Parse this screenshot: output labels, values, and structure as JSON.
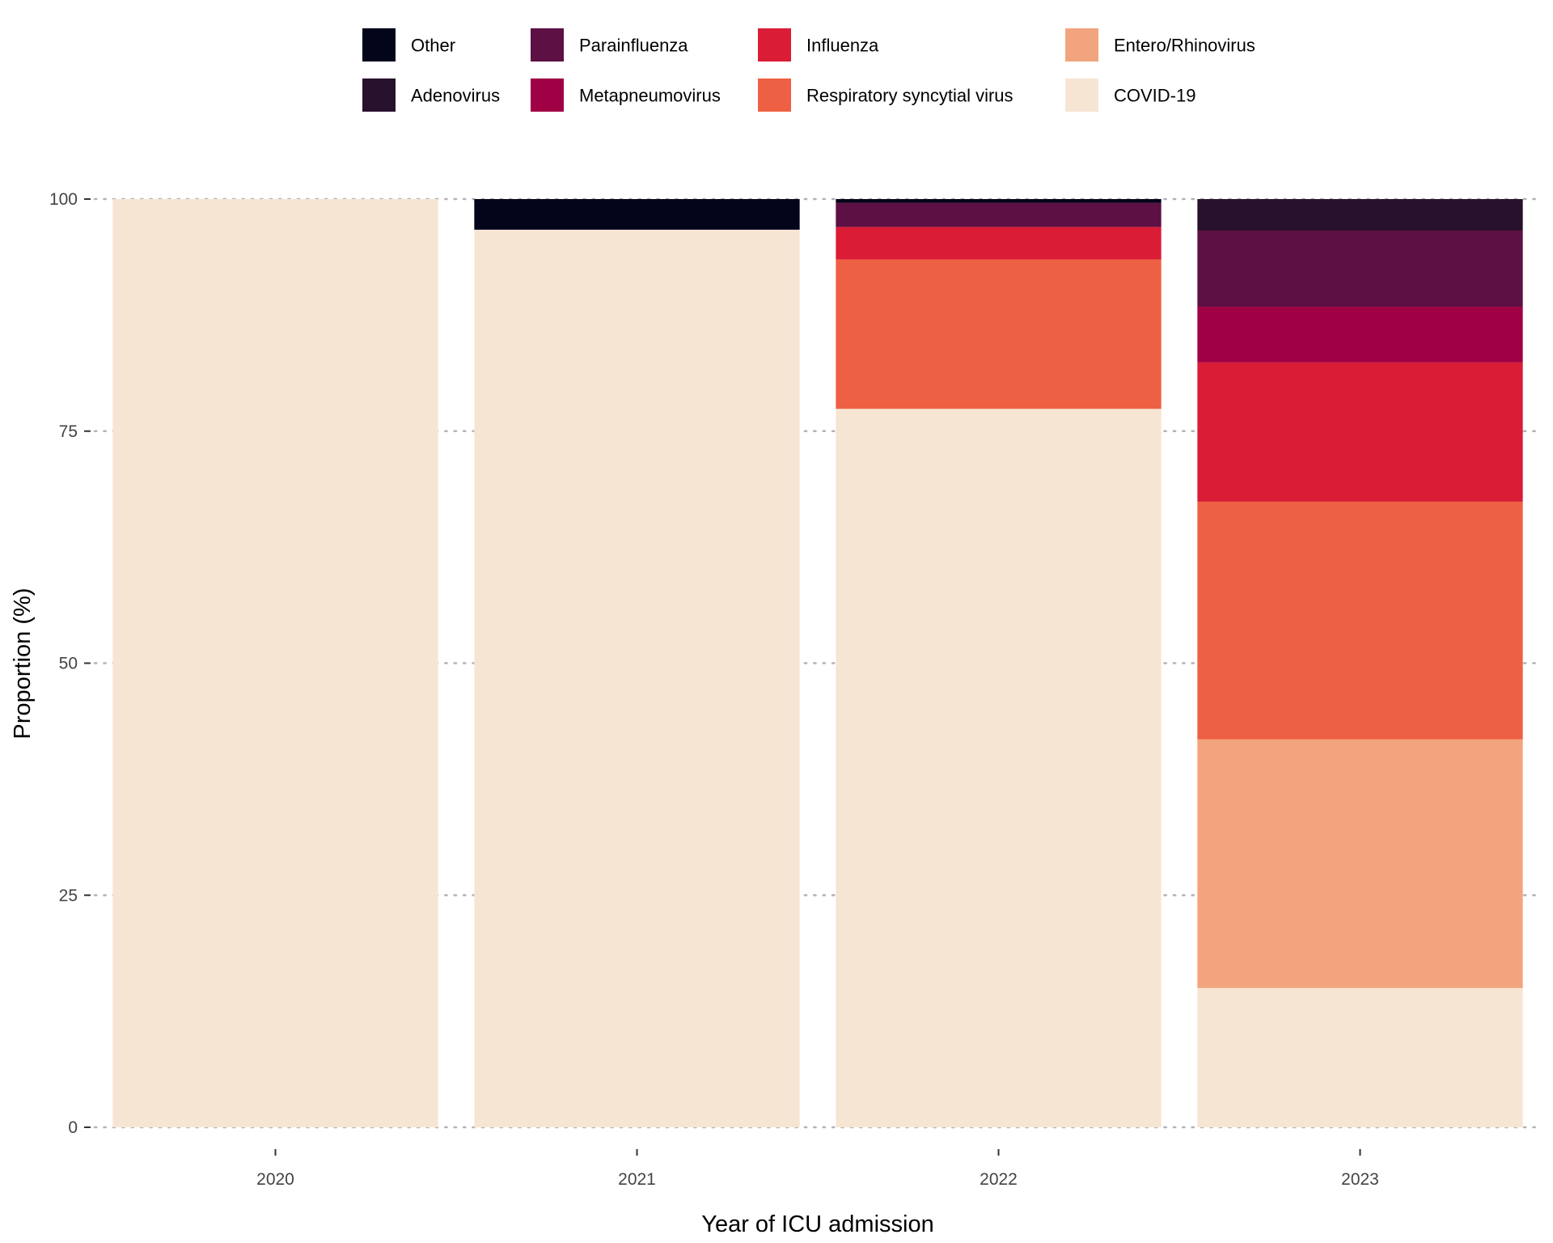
{
  "chart_data": {
    "type": "bar",
    "stacked": true,
    "title": "",
    "xlabel": "Year of ICU admission",
    "ylabel": "Proportion (%)",
    "categories": [
      "2020",
      "2021",
      "2022",
      "2023"
    ],
    "ylim": [
      0,
      100
    ],
    "yticks": [
      "0",
      "25",
      "50",
      "75",
      "100"
    ],
    "grid": "horizontal-dotted",
    "legend": {
      "position": "top",
      "columns": 4
    },
    "series": [
      {
        "name": "COVID-19",
        "color": "#F7E5D4",
        "values": [
          100,
          96.7,
          77.4,
          15.0
        ]
      },
      {
        "name": "Entero/Rhinovirus",
        "color": "#F2A47E",
        "values": [
          0,
          0,
          0,
          26.8
        ]
      },
      {
        "name": "Respiratory syncytial virus",
        "color": "#EE6043",
        "values": [
          0,
          0,
          16.1,
          25.6
        ]
      },
      {
        "name": "Influenza",
        "color": "#DA1C36",
        "values": [
          0,
          0,
          3.5,
          15.0
        ]
      },
      {
        "name": "Metapneumovirus",
        "color": "#A00044",
        "values": [
          0,
          0,
          0,
          6.0
        ]
      },
      {
        "name": "Parainfluenza",
        "color": "#5C1043",
        "values": [
          0,
          0,
          2.6,
          8.2
        ]
      },
      {
        "name": "Adenovirus",
        "color": "#28112C",
        "values": [
          0,
          0,
          0,
          3.4
        ]
      },
      {
        "name": "Other",
        "color": "#03051A",
        "values": [
          0,
          3.3,
          0.4,
          0
        ]
      }
    ],
    "legend_order": [
      "Other",
      "Adenovirus",
      "Parainfluenza",
      "Metapneumovirus",
      "Influenza",
      "Respiratory syncytial virus",
      "Entero/Rhinovirus",
      "COVID-19"
    ]
  }
}
